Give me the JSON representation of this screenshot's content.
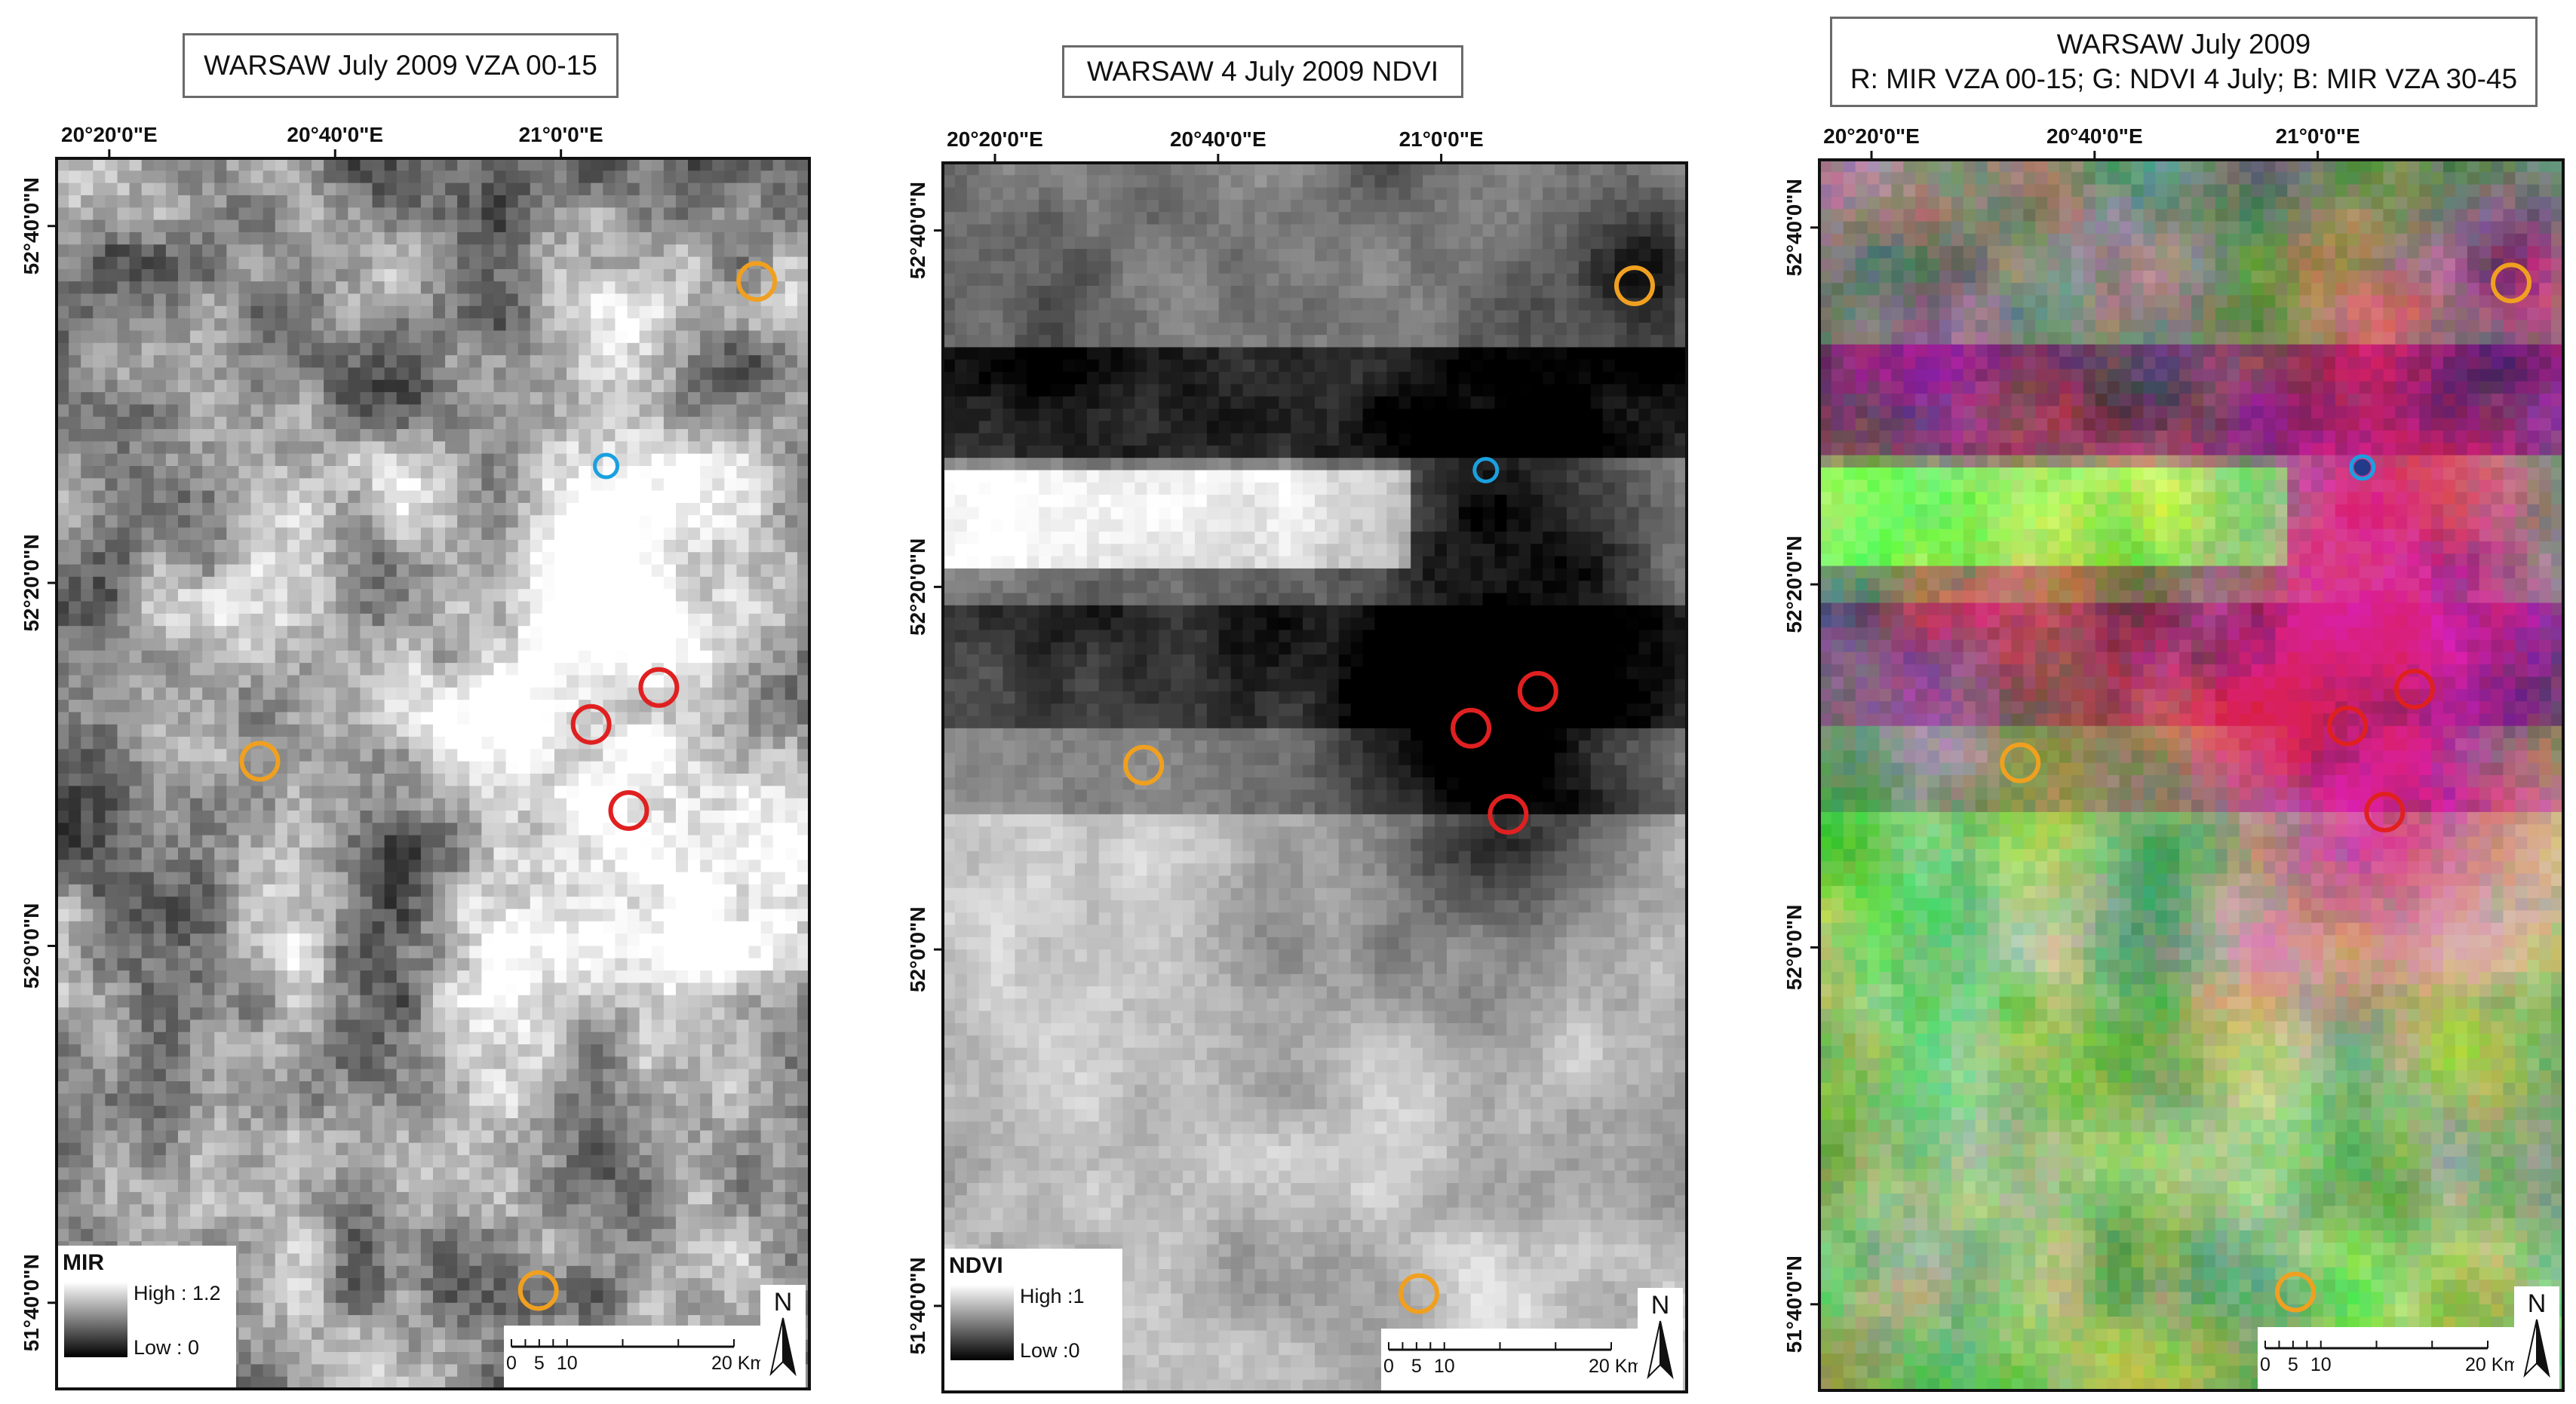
{
  "panels": [
    {
      "id": "mir",
      "title_lines": [
        "WARSAW July 2009 VZA 00-15"
      ],
      "style": "mir",
      "legend": {
        "title": "MIR",
        "high": "High : 1.2",
        "low": "Low : 0"
      }
    },
    {
      "id": "ndvi",
      "title_lines": [
        "WARSAW 4 July 2009 NDVI"
      ],
      "style": "ndvi",
      "legend": {
        "title": "NDVI",
        "high": "High :1",
        "low": "Low :0"
      }
    },
    {
      "id": "rgb",
      "title_lines": [
        "WARSAW July 2009",
        "R: MIR VZA 00-15; G: NDVI 4 July; B: MIR VZA 30-45"
      ],
      "style": "rgb",
      "legend": null
    }
  ],
  "x_ticks": [
    "20°20'0\"E",
    "20°40'0\"E",
    "21°0'0\"E"
  ],
  "y_ticks": [
    "52°40'0\"N",
    "52°20'0\"N",
    "52°0'0\"N",
    "51°40'0\"N"
  ],
  "scale_bar": {
    "labels": [
      "0",
      "5",
      "10",
      "20 Km"
    ]
  },
  "north_label": "N",
  "markers": [
    {
      "color": "orange",
      "u": 0.93,
      "v": 0.1
    },
    {
      "color": "orange",
      "u": 0.27,
      "v": 0.49
    },
    {
      "color": "orange",
      "u": 0.64,
      "v": 0.92
    },
    {
      "color": "red",
      "u": 0.71,
      "v": 0.46
    },
    {
      "color": "red",
      "u": 0.8,
      "v": 0.43
    },
    {
      "color": "red",
      "u": 0.76,
      "v": 0.53
    },
    {
      "color": "blue",
      "u": 0.73,
      "v": 0.25
    }
  ],
  "colors": {
    "orange": "#f0a020",
    "red": "#e02020",
    "blue": "#1aa0e0",
    "frame": "#111111",
    "title_border": "#6a6a6a"
  }
}
